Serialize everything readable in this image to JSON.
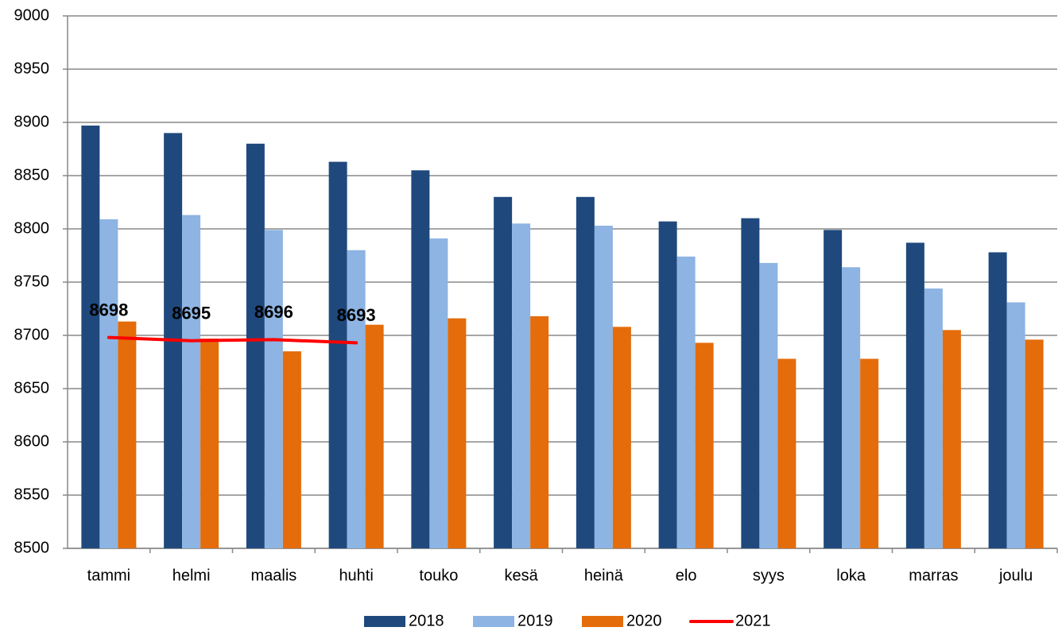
{
  "chart_data": {
    "type": "bar",
    "categories": [
      "tammi",
      "helmi",
      "maalis",
      "huhti",
      "touko",
      "kesä",
      "heinä",
      "elo",
      "syys",
      "loka",
      "marras",
      "joulu"
    ],
    "series": [
      {
        "name": "2018",
        "color": "#1f497d",
        "values": [
          8897,
          8890,
          8880,
          8863,
          8855,
          8830,
          8830,
          8807,
          8810,
          8799,
          8787,
          8778
        ]
      },
      {
        "name": "2019",
        "color": "#8db4e2",
        "values": [
          8809,
          8813,
          8799,
          8780,
          8791,
          8805,
          8803,
          8774,
          8768,
          8764,
          8744,
          8731
        ]
      },
      {
        "name": "2020",
        "color": "#e46c0a",
        "values": [
          8713,
          8697,
          8685,
          8710,
          8716,
          8718,
          8708,
          8693,
          8678,
          8678,
          8705,
          8696
        ]
      },
      {
        "name": "2021",
        "color": "#ff0000",
        "type": "line",
        "values": [
          8698,
          8695,
          8696,
          8693,
          null,
          null,
          null,
          null,
          null,
          null,
          null,
          null
        ]
      }
    ],
    "ylim": [
      8500,
      9000
    ],
    "yticks": [
      8500,
      8550,
      8600,
      8650,
      8700,
      8750,
      8800,
      8850,
      8900,
      8950,
      9000
    ],
    "grid": true
  }
}
